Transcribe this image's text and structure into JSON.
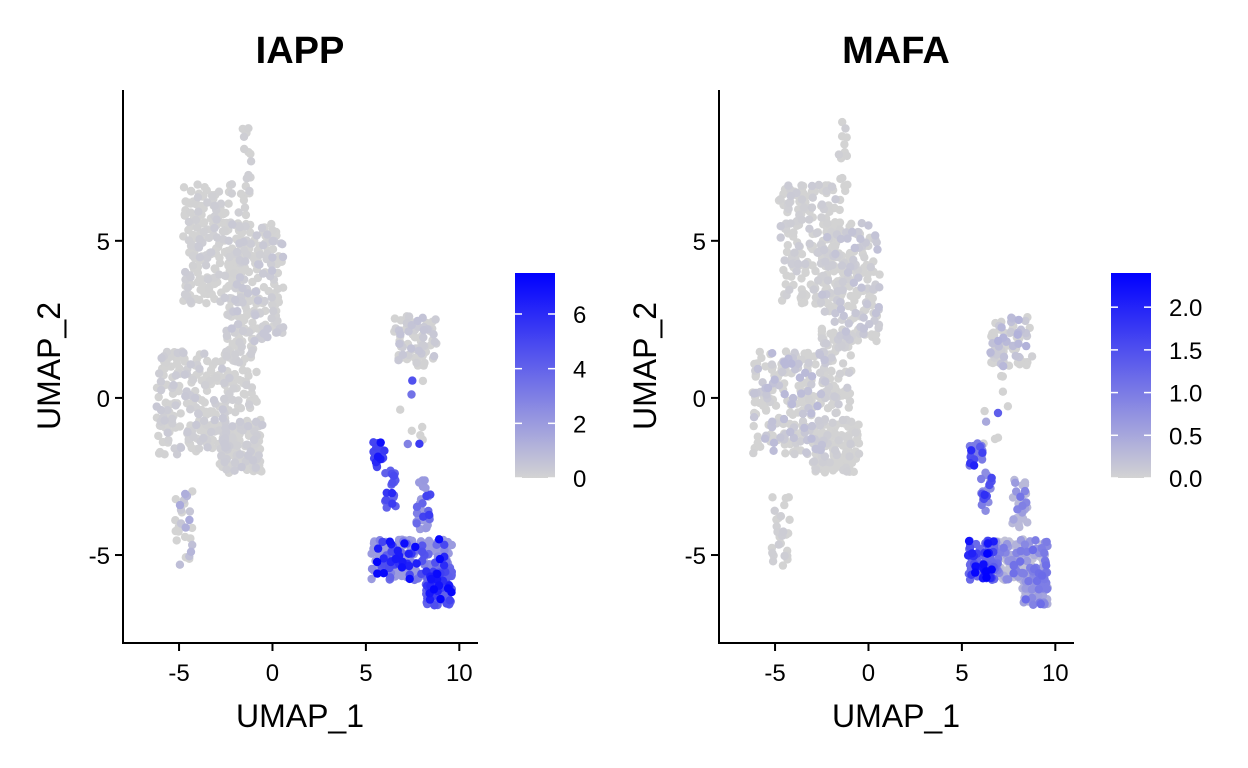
{
  "colors": {
    "low": "#d3d3d3",
    "high": "#0000ff",
    "axis": "#000000",
    "background": "#ffffff"
  },
  "chart_data": [
    {
      "type": "scatter",
      "title": "IAPP",
      "xlabel": "UMAP_1",
      "ylabel": "UMAP_2",
      "xlim": [
        -8,
        11
      ],
      "ylim": [
        -7.8,
        9.8
      ],
      "xticks": [
        -5,
        0,
        5,
        10
      ],
      "yticks": [
        -5,
        0,
        5
      ],
      "grid": false,
      "legend_position": "right",
      "color_scale": {
        "min": 0,
        "max": 7.5,
        "ticks": [
          0,
          2,
          4,
          6
        ]
      },
      "clusters": [
        {
          "x": [
            -6.2,
            -2.3
          ],
          "y": [
            -1.8,
            1.5
          ],
          "expr": [
            0,
            0.4
          ],
          "n": 220
        },
        {
          "x": [
            -4.8,
            -1.4
          ],
          "y": [
            3.0,
            6.8
          ],
          "expr": [
            0,
            0.3
          ],
          "n": 220
        },
        {
          "x": [
            -2.5,
            0.6
          ],
          "y": [
            1.8,
            5.6
          ],
          "expr": [
            0,
            0.5
          ],
          "n": 200
        },
        {
          "x": [
            -3.0,
            -0.5
          ],
          "y": [
            -2.4,
            -0.7
          ],
          "expr": [
            0,
            0.4
          ],
          "n": 130
        },
        {
          "x": [
            -2.5,
            -0.8
          ],
          "y": [
            -0.5,
            1.8
          ],
          "expr": [
            0,
            0.2
          ],
          "n": 60
        },
        {
          "x": [
            -1.6,
            -1.1
          ],
          "y": [
            6.5,
            8.8
          ],
          "expr": [
            0,
            0.2
          ],
          "n": 14
        },
        {
          "x": [
            -5.2,
            -4.2
          ],
          "y": [
            -5.4,
            -2.9
          ],
          "expr": [
            0,
            1.5
          ],
          "n": 28
        },
        {
          "x": [
            6.5,
            8.8
          ],
          "y": [
            1.0,
            2.6
          ],
          "expr": [
            0,
            0.6
          ],
          "n": 80
        },
        {
          "x": [
            5.4,
            6.1
          ],
          "y": [
            -2.2,
            -1.4
          ],
          "expr": [
            5.0,
            7.2
          ],
          "n": 24
        },
        {
          "x": [
            6.0,
            6.6
          ],
          "y": [
            -3.6,
            -2.3
          ],
          "expr": [
            4.0,
            6.5
          ],
          "n": 22
        },
        {
          "x": [
            7.7,
            8.5
          ],
          "y": [
            -4.2,
            -2.6
          ],
          "expr": [
            2.0,
            5.5
          ],
          "n": 30
        },
        {
          "x": [
            5.3,
            9.6
          ],
          "y": [
            -5.8,
            -4.5
          ],
          "expr": [
            2.0,
            7.5
          ],
          "n": 240
        },
        {
          "x": [
            8.2,
            9.6
          ],
          "y": [
            -6.6,
            -5.5
          ],
          "expr": [
            4.0,
            7.5
          ],
          "n": 90
        },
        {
          "x": [
            6.0,
            8.3
          ],
          "y": [
            -1.5,
            0.8
          ],
          "expr": [
            0,
            5.5
          ],
          "n": 10
        }
      ]
    },
    {
      "type": "scatter",
      "title": "MAFA",
      "xlabel": "UMAP_1",
      "ylabel": "UMAP_2",
      "xlim": [
        -8,
        11
      ],
      "ylim": [
        -7.8,
        9.8
      ],
      "xticks": [
        -5,
        0,
        5,
        10
      ],
      "yticks": [
        -5,
        0,
        5
      ],
      "grid": false,
      "legend_position": "right",
      "color_scale": {
        "min": 0,
        "max": 2.4,
        "ticks": [
          0.0,
          0.5,
          1.0,
          1.5,
          2.0
        ]
      },
      "clusters": [
        {
          "x": [
            -6.2,
            -2.3
          ],
          "y": [
            -1.8,
            1.5
          ],
          "expr": [
            0,
            0.3
          ],
          "n": 220
        },
        {
          "x": [
            -4.8,
            -1.4
          ],
          "y": [
            3.0,
            6.8
          ],
          "expr": [
            0,
            0.1
          ],
          "n": 220
        },
        {
          "x": [
            -2.5,
            0.6
          ],
          "y": [
            1.8,
            5.6
          ],
          "expr": [
            0,
            0.2
          ],
          "n": 200
        },
        {
          "x": [
            -3.0,
            -0.5
          ],
          "y": [
            -2.4,
            -0.7
          ],
          "expr": [
            0,
            0.1
          ],
          "n": 130
        },
        {
          "x": [
            -2.5,
            -0.8
          ],
          "y": [
            -0.5,
            1.8
          ],
          "expr": [
            0,
            0.1
          ],
          "n": 60
        },
        {
          "x": [
            -1.6,
            -1.1
          ],
          "y": [
            6.5,
            8.8
          ],
          "expr": [
            0,
            0.1
          ],
          "n": 14
        },
        {
          "x": [
            -5.2,
            -4.2
          ],
          "y": [
            -5.4,
            -2.9
          ],
          "expr": [
            0,
            0.1
          ],
          "n": 28
        },
        {
          "x": [
            6.5,
            8.8
          ],
          "y": [
            1.0,
            2.6
          ],
          "expr": [
            0,
            0.4
          ],
          "n": 80
        },
        {
          "x": [
            5.4,
            6.1
          ],
          "y": [
            -2.2,
            -1.4
          ],
          "expr": [
            1.0,
            2.2
          ],
          "n": 24
        },
        {
          "x": [
            6.0,
            6.6
          ],
          "y": [
            -3.6,
            -2.3
          ],
          "expr": [
            0.8,
            2.0
          ],
          "n": 22
        },
        {
          "x": [
            7.7,
            8.5
          ],
          "y": [
            -4.2,
            -2.6
          ],
          "expr": [
            0.3,
            1.2
          ],
          "n": 30
        },
        {
          "x": [
            5.3,
            6.8
          ],
          "y": [
            -5.8,
            -4.5
          ],
          "expr": [
            1.2,
            2.4
          ],
          "n": 90
        },
        {
          "x": [
            6.8,
            9.6
          ],
          "y": [
            -5.8,
            -4.5
          ],
          "expr": [
            0.2,
            1.2
          ],
          "n": 150
        },
        {
          "x": [
            8.2,
            9.6
          ],
          "y": [
            -6.6,
            -5.5
          ],
          "expr": [
            0.4,
            1.2
          ],
          "n": 90
        },
        {
          "x": [
            6.0,
            8.3
          ],
          "y": [
            -1.5,
            0.8
          ],
          "expr": [
            0,
            1.5
          ],
          "n": 10
        }
      ]
    }
  ]
}
